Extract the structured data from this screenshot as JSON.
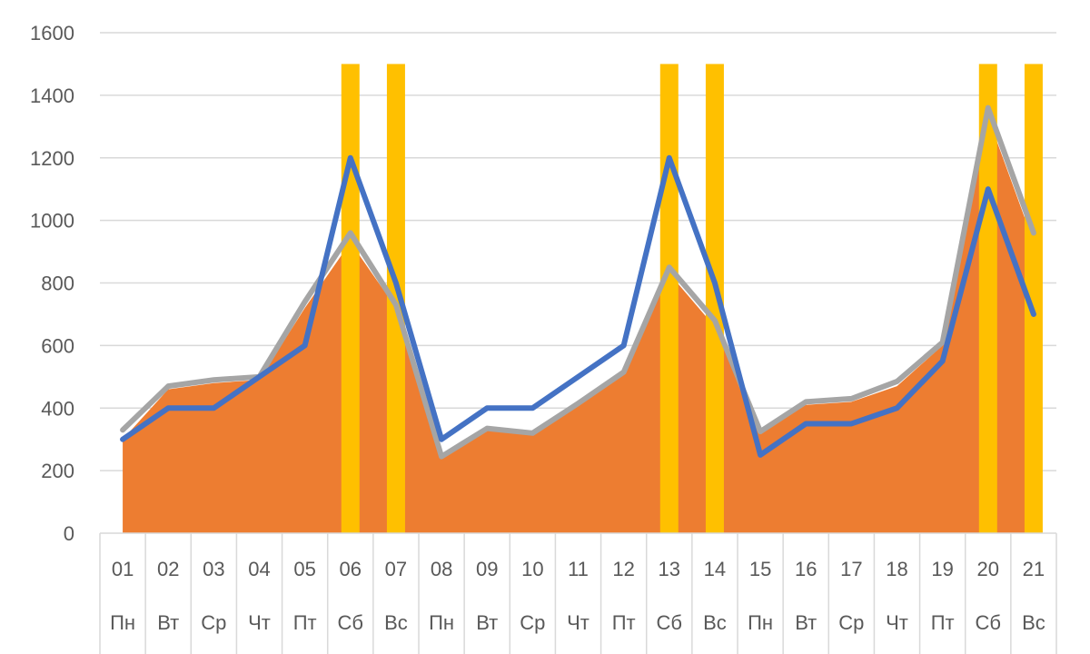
{
  "chart_data": {
    "type": "area",
    "y_ticks": [
      "0",
      "200",
      "400",
      "600",
      "800",
      "1000",
      "1200",
      "1400",
      "1600"
    ],
    "ylim": [
      0,
      1600
    ],
    "grid": true,
    "categories": [
      "01",
      "02",
      "03",
      "04",
      "05",
      "06",
      "07",
      "08",
      "09",
      "10",
      "11",
      "12",
      "13",
      "14",
      "15",
      "16",
      "17",
      "18",
      "19",
      "20",
      "21"
    ],
    "weekdays": [
      "Пн",
      "Вт",
      "Ср",
      "Чт",
      "Пт",
      "Сб",
      "Вс",
      "Пн",
      "Вт",
      "Ср",
      "Чт",
      "Пт",
      "Сб",
      "Вс",
      "Пн",
      "Вт",
      "Ср",
      "Чт",
      "Пт",
      "Сб",
      "Вс"
    ],
    "series": [
      {
        "name": "orange area",
        "kind": "area",
        "color": "#ED7D31",
        "values": [
          300,
          460,
          480,
          490,
          720,
          930,
          720,
          250,
          330,
          320,
          410,
          510,
          830,
          660,
          320,
          410,
          420,
          470,
          600,
          1330,
          930
        ]
      },
      {
        "name": "gray line",
        "kind": "line",
        "color": "#A5A5A5",
        "values": [
          330,
          470,
          490,
          500,
          740,
          960,
          730,
          245,
          335,
          320,
          415,
          515,
          850,
          680,
          325,
          420,
          430,
          485,
          610,
          1360,
          960
        ]
      },
      {
        "name": "blue line",
        "kind": "line",
        "color": "#4472C4",
        "values": [
          300,
          400,
          400,
          500,
          600,
          1200,
          800,
          300,
          400,
          400,
          500,
          600,
          1200,
          800,
          250,
          350,
          350,
          400,
          550,
          1100,
          700
        ]
      },
      {
        "name": "weekend bars",
        "kind": "bar",
        "color": "#FFC000",
        "values": [
          0,
          0,
          0,
          0,
          0,
          1500,
          1500,
          0,
          0,
          0,
          0,
          0,
          1500,
          1500,
          0,
          0,
          0,
          0,
          0,
          1500,
          1500
        ]
      }
    ]
  }
}
